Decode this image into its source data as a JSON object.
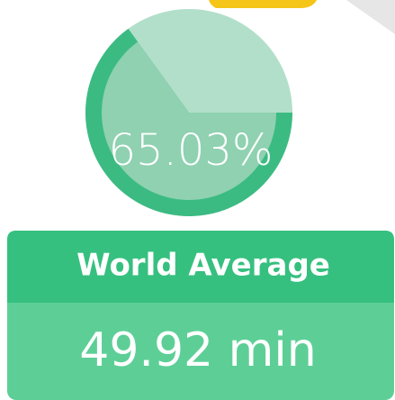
{
  "gauge": {
    "value": 65.03,
    "value_label": "65.03%"
  },
  "card": {
    "title": "World Average",
    "value": "49.92 min"
  }
}
